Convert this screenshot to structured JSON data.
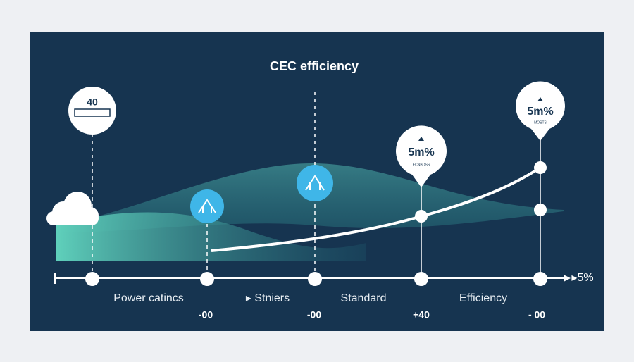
{
  "title": "CEC efficiency",
  "pins": [
    {
      "label": "40"
    },
    {
      "label": "5m%",
      "sublabel": "ECNBOSS"
    },
    {
      "label": "5m%",
      "sublabel": "MOSTS"
    }
  ],
  "axis": {
    "labels": [
      "Power catincs",
      "▸ Stniers",
      "Standard",
      "Efficiency"
    ],
    "values": [
      "-00",
      "-00",
      "+40",
      "- 00"
    ],
    "end": "▸5%"
  }
}
